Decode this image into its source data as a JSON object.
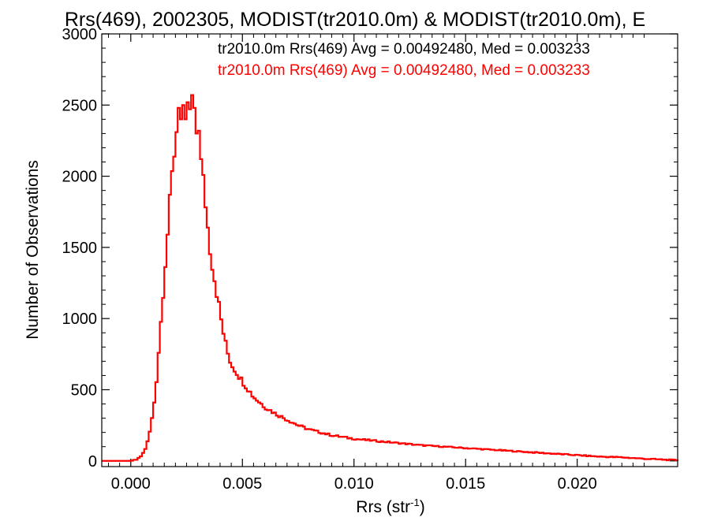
{
  "chart_data": {
    "type": "histogram",
    "title": "Rrs(469), 2002305, MODIST(tr2010.0m) & MODIST(tr2010.0m), E",
    "xlabel": "Rrs (str",
    "xlabel_sup": "-1",
    "xlabel_close": ")",
    "ylabel": "Number of Observations",
    "xlim": [
      -0.0013,
      0.0245
    ],
    "ylim": [
      -40,
      3000
    ],
    "x_ticks": [
      0.0,
      0.005,
      0.01,
      0.015,
      0.02
    ],
    "x_tick_labels": [
      "0.000",
      "0.005",
      "0.010",
      "0.015",
      "0.020"
    ],
    "y_ticks": [
      0,
      500,
      1000,
      1500,
      2000,
      2500,
      3000
    ],
    "y_tick_labels": [
      "0",
      "500",
      "1000",
      "1500",
      "2000",
      "2500",
      "3000"
    ],
    "bin_width": 0.0001,
    "series": [
      {
        "name": "tr2010.0m Rrs(469) Avg = 0.00492480, Med = 0.003233",
        "color": "#000000"
      },
      {
        "name": "tr2010.0m Rrs(469) Avg = 0.00492480, Med = 0.003233",
        "color": "#ff0000"
      }
    ],
    "curve_points": [
      [
        -0.0013,
        0
      ],
      [
        0.0,
        0
      ],
      [
        0.0003,
        10
      ],
      [
        0.0005,
        40
      ],
      [
        0.0007,
        100
      ],
      [
        0.0009,
        240
      ],
      [
        0.0011,
        470
      ],
      [
        0.0013,
        870
      ],
      [
        0.0015,
        1300
      ],
      [
        0.0017,
        1700
      ],
      [
        0.0019,
        2100
      ],
      [
        0.0021,
        2400
      ],
      [
        0.0023,
        2480
      ],
      [
        0.0025,
        2500
      ],
      [
        0.0027,
        2520
      ],
      [
        0.0029,
        2400
      ],
      [
        0.0031,
        2150
      ],
      [
        0.0033,
        1900
      ],
      [
        0.0035,
        1550
      ],
      [
        0.0037,
        1330
      ],
      [
        0.0039,
        1140
      ],
      [
        0.0041,
        940
      ],
      [
        0.0043,
        780
      ],
      [
        0.0045,
        680
      ],
      [
        0.005,
        560
      ],
      [
        0.0055,
        450
      ],
      [
        0.006,
        380
      ],
      [
        0.0065,
        330
      ],
      [
        0.007,
        290
      ],
      [
        0.0075,
        250
      ],
      [
        0.008,
        220
      ],
      [
        0.009,
        180
      ],
      [
        0.01,
        155
      ],
      [
        0.011,
        140
      ],
      [
        0.012,
        125
      ],
      [
        0.013,
        110
      ],
      [
        0.014,
        100
      ],
      [
        0.015,
        90
      ],
      [
        0.016,
        80
      ],
      [
        0.017,
        70
      ],
      [
        0.018,
        60
      ],
      [
        0.019,
        50
      ],
      [
        0.02,
        40
      ],
      [
        0.021,
        30
      ],
      [
        0.022,
        25
      ],
      [
        0.023,
        15
      ],
      [
        0.024,
        8
      ],
      [
        0.0245,
        5
      ]
    ],
    "peak_bins": [
      [
        0.0021,
        2480
      ],
      [
        0.0022,
        2400
      ],
      [
        0.0023,
        2500
      ],
      [
        0.0024,
        2400
      ],
      [
        0.0025,
        2520
      ],
      [
        0.0026,
        2470
      ],
      [
        0.0027,
        2570
      ],
      [
        0.0028,
        2480
      ],
      [
        0.0029,
        2300
      ],
      [
        0.003,
        2320
      ]
    ],
    "grid": false,
    "legend_position": "top-right"
  }
}
